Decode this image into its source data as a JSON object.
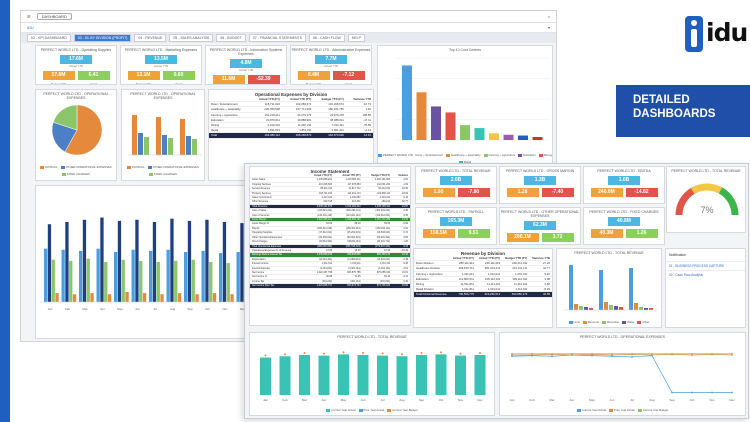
{
  "brand": {
    "logo_text": "idu",
    "banner_line1": "DETAILED",
    "banner_line2": "DASHBOARDS"
  },
  "app": {
    "top_tab": "DASHBOARD",
    "subbar_label": "iDU",
    "tabs": [
      "02 - KPI DASHBOARD",
      "03 - GL BY DIVISION (PROFIT)",
      "04 - REVENUE",
      "05 - SALES ANALYSIS",
      "06 - BUDGET",
      "07 - FINANCIAL STATEMENTS",
      "08 - CASH FLOW",
      "HELP"
    ],
    "active_tab": 1
  },
  "dash1": {
    "kpis": [
      {
        "title": "PERFECT WORLD LTD - Operating Supplies",
        "v1": "17.6M",
        "v2": "0",
        "v3": "17.6M",
        "v4": "6.41"
      },
      {
        "title": "PERFECT WORLD LTD - Marketing Expenses",
        "v1": "13.5M",
        "v2": "0",
        "v3": "13.1M",
        "v4": "0.60"
      },
      {
        "title": "PERFECT WORLD LTD - Information Systems Expenses",
        "v1": "4.8M",
        "v2": "0",
        "v3": "11.6M",
        "v4": "-52.39"
      },
      {
        "title": "PERFECT WORLD LTD - Administrative Expenses",
        "v1": "7.7M",
        "v2": "0",
        "v3": "8.4M",
        "v4": "-7.12"
      }
    ],
    "kpi_labels": [
      "Actual YTD",
      "Budget YTD",
      "Variance YTD",
      "Var %"
    ],
    "pie1_title": "PERFECT WORLD LTD - OPERATIONAL EXPENSES",
    "pie1_legend": [
      "PAYROLL",
      "OTHER OPERATIONAL EXPENSES",
      "FIXED CHARGES"
    ],
    "bars1_title": "PERFECT WORLD LTD - OPERATIONAL EXPENSES",
    "table1_title": "Operational Expenses by Division",
    "table1_headers": [
      "",
      "Actual YTD (FY)",
      "Actual YTD (PY)",
      "Budget YTD (FY)",
      "Variance YTD"
    ],
    "table1_rows": [
      [
        "Rotor / Entertainment",
        "118,711,624",
        "102,250,571",
        "101,168,674",
        "16.73"
      ],
      [
        "Healthcare + Hospitality",
        "220,789,528",
        "217,711,906",
        "190,231,750",
        "1.40"
      ],
      [
        "Farming + Agriculture",
        "102,218,411",
        "34,279,173",
        "24,079,478",
        "198.55"
      ],
      [
        "Education",
        "20,879,011",
        "40,888,901",
        "38,088,611",
        "-47.11"
      ],
      [
        "Mining",
        "2,419,322",
        "11,287,211",
        "7,001,111",
        "-78.59"
      ],
      [
        "Retail",
        "1,811,813",
        "1,851,111",
        "2,001,311",
        "-2.13"
      ],
      [
        "Total",
        "466,080,112",
        "408,268,873",
        "362,570,936",
        "14.16"
      ]
    ],
    "bar_big_title": "Top 10 Cost Centres",
    "bar_big_legend": [
      "PERFECT WORLD LTD - Rotor + Entertainment",
      "Healthcare + Hospitality",
      "Farming + Agriculture",
      "Education",
      "Mining",
      "Retail"
    ],
    "bottom_title": "OPERATING RATIO (YTD) - OPERATIONAL EXPENSES",
    "bottom_legend": [
      "Rotor + Entertainment",
      "Healthcare",
      "Farming",
      "Agriculture",
      "Mining",
      "Education"
    ],
    "months": [
      "Jan",
      "Feb",
      "Mar",
      "Apr",
      "May",
      "Jun",
      "Jul",
      "Aug",
      "Sep",
      "Oct",
      "Nov",
      "Dec"
    ]
  },
  "dash2": {
    "income_title": "Income Statement",
    "income_headers": [
      "",
      "Actual YTD (FY)",
      "Actual YTD (PY)",
      "Budget YTD (FY)",
      "Variance"
    ],
    "income_rows": [
      [
        "Gross Sales",
        "1,345,858,201",
        "1,210,650,211",
        "1,300,101,000",
        "3.52"
      ],
      [
        "Ongoing Services",
        "213,318,600",
        "117,678,883",
        "211,001,200",
        "1.09"
      ],
      [
        "Service Revenue",
        "88,211,011",
        "41,917,712",
        "60,012,011",
        "46.99"
      ],
      [
        "Property Services",
        "118,711,234",
        "112,201,173",
        "100,080,111",
        "18.62"
      ],
      [
        "Sales Commission",
        "4,417,911",
        "4,100,087",
        "4,201,211",
        "5.16"
      ],
      [
        "Other Revenue",
        "212,718",
        "212,341",
        "160,212",
        "32.77"
      ],
      [
        "Total Revenue",
        "2,045,121,676",
        "1,613,184,312",
        "1,678,185,311",
        "21.87"
      ],
      [
        "Cost of Sales",
        "(410,811,211)",
        "(392,201,111)",
        "(401,001,011)",
        "2.45"
      ],
      [
        "Cost of Services",
        "(120,301,119)",
        "(121,001,011)",
        "(110,012,011)",
        "9.35"
      ],
      [
        "Gross Margin",
        "1,322,908,221",
        "1,099,982,190",
        "1,167,172,289",
        "13.34"
      ],
      [
        "Gross Margin %",
        "64.69",
        "68.19",
        "69.55",
        "-6.99"
      ],
      [
        "Payroll",
        "(165,312,019)",
        "(155,302,011)",
        "(160,010,111)",
        "3.31"
      ],
      [
        "Operating Supplies",
        "(17,612,011)",
        "(15,201,001)",
        "(16,503,011)",
        "6.72"
      ],
      [
        "Other Operational Expenses",
        "(62,303,011)",
        "(52,001,301)",
        "(60,001,311)",
        "3.84"
      ],
      [
        "Fixed Charges",
        "(40,811,911)",
        "(38,811,011)",
        "(40,301,711)",
        "1.26"
      ],
      [
        "Total Operational Expenses",
        "(286,038,952)",
        "(261,315,324)",
        "(276,816,144)",
        "3.33"
      ],
      [
        "Operational Expenses % of Revenue",
        "13.99",
        "16.20",
        "16.49",
        "-15.19"
      ],
      [
        "Earnings Before Interest Tax",
        "1,036,869,269",
        "838,666,866",
        "890,356,145",
        "16.46"
      ],
      [
        "Depreciation",
        "(12,011,311)",
        "(11,800,211)",
        "(12,301,011)",
        "-2.36"
      ],
      [
        "Interest Income",
        "1,311,611",
        "1,010,111",
        "1,201,311",
        "9.18"
      ],
      [
        "Interest Expense",
        "(4,011,811)",
        "(4,301,011)",
        "(4,201,111)",
        "-4.51"
      ],
      [
        "Net Income",
        "1,022,157,758",
        "823,575,755",
        "875,055,334",
        "16.81"
      ],
      [
        "Net Income %",
        "49.98",
        "51.05",
        "52.14",
        "-4.14"
      ],
      [
        "Income Tax",
        "(311,011)",
        "(301,011)",
        "(310,011)",
        "0.32"
      ],
      [
        "Net Income After Tax",
        "1,021,846,747",
        "823,274,744",
        "874,745,323",
        "16.82"
      ]
    ],
    "kpis_row1": [
      {
        "title": "PERFECT WORLD LTD - TOTAL REVENUE",
        "v1": "2.0B",
        "v2": "1.9B",
        "v3": "1.50",
        "v4": "-7.80"
      },
      {
        "title": "PERFECT WORLD LTD - GROSS MARGIN",
        "v1": "1.3B",
        "v2": "1.2B",
        "v3": "1.28",
        "v4": "-7.40"
      },
      {
        "title": "PERFECT WORLD LTD - EBITDA",
        "v1": "1.0B",
        "v2": "636.2M",
        "v3": "240.0M",
        "v4": "-14.82"
      }
    ],
    "kpis_row2": [
      {
        "title": "PERFECT WORLD LTD - PAYROLL",
        "v1": "165.3M",
        "v2": "86.5M",
        "v3": "158.5M",
        "v4": "9.51"
      },
      {
        "title": "PERFECT WORLD LTD - OTHER OPERATIONAL EXPENSES",
        "v1": "62.3M",
        "v2": "382.5M",
        "v3": "200.1M",
        "v4": "3.72"
      },
      {
        "title": "PERFECT WORLD LTD - FIXED CHARGES",
        "v1": "40.8M",
        "v2": "2.0M",
        "v3": "40.3M",
        "v4": "1.26"
      }
    ],
    "gauge_title": "PERFECT WORLD LTD - TOTAL REVENUE",
    "gauge_value": "7%",
    "gauge_fraction": 0.07,
    "rev_div_title": "Revenue by Division",
    "rev_div_headers": [
      "",
      "Actual YTD (FY)",
      "Actual YTD (PY)",
      "Budget YTD (FY)",
      "Variance YTD"
    ],
    "rev_div_rows": [
      [
        "Rotor Division",
        "280,111,911",
        "220,111,019",
        "200,411,011",
        "27.26"
      ],
      [
        "Healthcare Division",
        "299,819,711",
        "281,919,411",
        "210,011,111",
        "42.77"
      ],
      [
        "Farming + Agriculture",
        "1,311,011",
        "1,012,011",
        "1,201,011",
        "9.16"
      ],
      [
        "Education",
        "112,800,511",
        "108,112,011",
        "109,111,011",
        "3.38"
      ],
      [
        "Mining",
        "11,511,811",
        "11,111,011",
        "11,211,011",
        "2.68"
      ],
      [
        "Retail Division",
        "1,011,811",
        "1,001,011",
        "1,111,011",
        "-8.93"
      ],
      [
        "Total Divisional Revenue",
        "706,566,775",
        "623,266,513",
        "533,056,176",
        "32.55"
      ]
    ],
    "bar_rev_title": "PERFECT WORLD LTD - TOTAL REVENUE",
    "bar_rev_legend": [
      "Units",
      "Revenue",
      "Retention",
      "Water",
      "Other"
    ],
    "side_panel_title": "Notification",
    "side_panel_items": [
      "01 - BUSINESS PROCESS CAPTURE",
      "02 - Cash Flow Analysis"
    ],
    "line1_title": "PERFECT WORLD LTD - TOTAL REVENUE",
    "line1_legend": [
      "Current Year Actual",
      "Prior Year Actual",
      "Current Year Budget"
    ],
    "line2_title": "PERFECT WORLD LTD - OPERATIONAL EXPENSES",
    "line2_legend": [
      "Current Year Actual",
      "Prior Year Actual",
      "Current Year Budget"
    ],
    "months": [
      "Jan",
      "Feb",
      "Mar",
      "Apr",
      "May",
      "Jun",
      "Jul",
      "Aug",
      "Sep",
      "Oct",
      "Nov",
      "Dec"
    ]
  },
  "chart_data": [
    {
      "type": "pie",
      "title": "PERFECT WORLD LTD - OPERATIONAL EXPENSES",
      "categories": [
        "PAYROLL",
        "OTHER OPERATIONAL EXPENSES",
        "FIXED CHARGES"
      ],
      "values": [
        58,
        22,
        20
      ],
      "colors": [
        "#e58a3d",
        "#4b80c7",
        "#8cc66a"
      ]
    },
    {
      "type": "bar",
      "title": "Top 10 Cost Centres",
      "categories": [
        "C1",
        "C2",
        "C3",
        "C4",
        "C5",
        "C6",
        "C7",
        "C8",
        "C9",
        "C10"
      ],
      "values": [
        100,
        64,
        45,
        37,
        20,
        16,
        9,
        7,
        6,
        4
      ],
      "ylim": [
        0,
        110
      ]
    },
    {
      "type": "bar",
      "title": "OPERATING RATIO (YTD) - OPERATIONAL EXPENSES",
      "categories": [
        "Jan",
        "Feb",
        "Mar",
        "Apr",
        "May",
        "Jun",
        "Jul",
        "Aug",
        "Sep",
        "Oct",
        "Nov",
        "Dec"
      ],
      "series": [
        {
          "name": "Rotor + Entertainment",
          "values": [
            48,
            47,
            46,
            48,
            45,
            47,
            46,
            47,
            45,
            46,
            44,
            45
          ]
        },
        {
          "name": "Healthcare",
          "values": [
            70,
            72,
            74,
            76,
            73,
            74,
            72,
            75,
            73,
            74,
            72,
            71
          ]
        },
        {
          "name": "Farming",
          "values": [
            38,
            37,
            39,
            36,
            38,
            37,
            36,
            37,
            38,
            36,
            35,
            36
          ]
        },
        {
          "name": "Agriculture",
          "values": [
            8,
            7,
            8,
            7,
            9,
            8,
            7,
            8,
            7,
            8,
            7,
            8
          ]
        }
      ],
      "ylim": [
        0,
        90
      ]
    },
    {
      "type": "bar",
      "title": "PERFECT WORLD LTD - TOTAL REVENUE",
      "categories": [
        "Jan",
        "Feb",
        "Mar",
        "Apr",
        "May",
        "Jun",
        "Jul",
        "Aug",
        "Sep",
        "Oct",
        "Nov",
        "Dec"
      ],
      "values": [
        60,
        62,
        64,
        63,
        65,
        64,
        63,
        62,
        64,
        65,
        63,
        64
      ],
      "ylim": [
        0,
        80
      ]
    },
    {
      "type": "line",
      "title": "PERFECT WORLD LTD - OPERATIONAL EXPENSES",
      "x": [
        "Jan",
        "Feb",
        "Mar",
        "Apr",
        "May",
        "Jun",
        "Jul",
        "Aug",
        "Sep",
        "Oct",
        "Nov",
        "Dec"
      ],
      "series": [
        {
          "name": "Current Year Actual",
          "values": [
            62,
            63,
            62,
            64,
            63,
            62,
            61,
            63,
            4,
            4,
            4,
            4
          ]
        },
        {
          "name": "Prior Year Actual",
          "values": [
            64,
            64,
            65,
            64,
            65,
            64,
            65,
            64,
            65,
            64,
            65,
            64
          ]
        },
        {
          "name": "Current Year Budget",
          "values": [
            66,
            66,
            66,
            66,
            66,
            66,
            66,
            66,
            66,
            66,
            66,
            66
          ]
        }
      ],
      "ylim": [
        0,
        80
      ]
    }
  ],
  "colors": {
    "accent": "#1f5fbf",
    "banner": "#1f4fa8",
    "kpi_blue": "#4cb7e0",
    "kpi_green": "#8ccf5a",
    "kpi_orange": "#f0a23a",
    "kpi_red": "#e2534a"
  }
}
